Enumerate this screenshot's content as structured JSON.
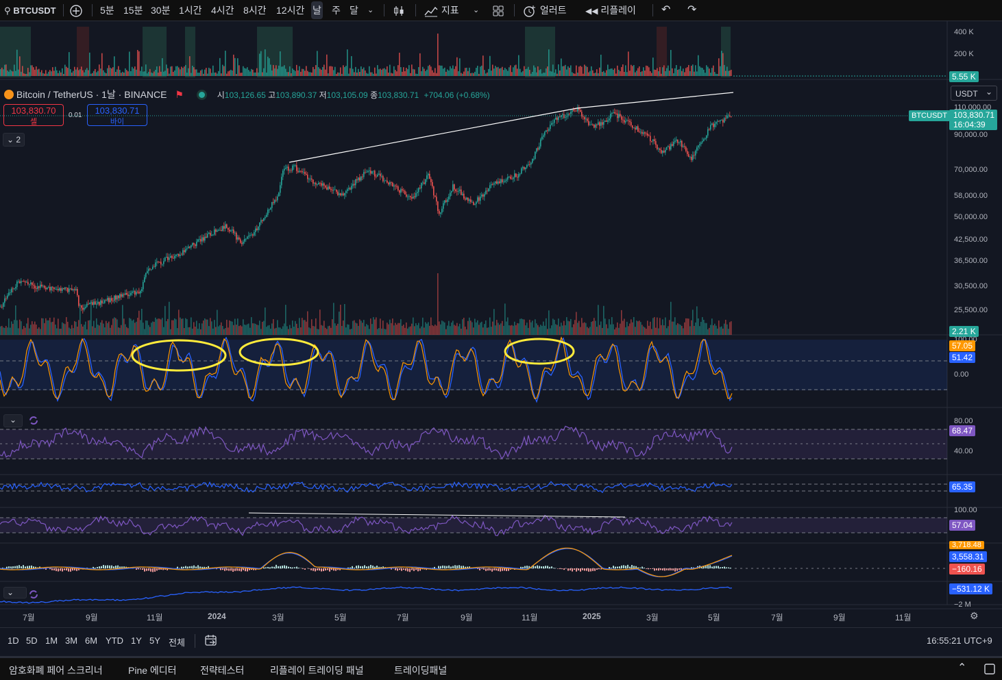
{
  "toolbar": {
    "symbol": "BTCUSDT",
    "intervals": [
      "5분",
      "15분",
      "30분",
      "1시간",
      "4시간",
      "8시간",
      "12시간",
      "날",
      "주",
      "달"
    ],
    "active_interval": "날",
    "indicators_label": "지표",
    "alert_label": "얼러트",
    "replay_label": "리플레이"
  },
  "legend": {
    "title": "Bitcoin / TetherUS · 1날 · BINANCE",
    "open_label": "시",
    "open": "103,126.65",
    "high_label": "고",
    "high": "103,890.37",
    "low_label": "저",
    "low": "103,105.09",
    "close_label": "종",
    "close": "103,830.71",
    "change": "+704.06 (+0.68%)",
    "sell_price": "103,830.70",
    "sell_label": "셀",
    "spread": "0.01",
    "buy_price": "103,830.71",
    "buy_label": "바이",
    "collapsed_count": "2"
  },
  "currency": "USDT",
  "price_axis": [
    "110,000.00",
    "90,000.00",
    "70,000.00",
    "58,000.00",
    "50,000.00",
    "42,500.00",
    "36,500.00",
    "30,500.00",
    "25,500.00"
  ],
  "top_volume_axis": [
    "400 K",
    "200 K"
  ],
  "tags": {
    "top_volume": "5.55 K",
    "symbol_tag": "BTCUSDT",
    "last_price": "103,830.71",
    "countdown": "16:04:39",
    "volume": "2.21 K",
    "stoch_k": "57.05",
    "stoch_d": "51.42",
    "stoch_axis_top": "100.00",
    "stoch_zero": "0.00",
    "rsi_axis_80": "80.00",
    "rsi_axis_40": "40.00",
    "rsi": "68.47",
    "ind3": "65.35",
    "ind4_axis": "100.00",
    "ind4": "57.04",
    "macd_top": "3,718.48",
    "macd": "3,558.31",
    "macd_hist": "−160.16",
    "obv": "−531.12 K",
    "obv_axis": "−2 M"
  },
  "time_axis": [
    "7월",
    "9월",
    "11월",
    "2024",
    "3월",
    "5월",
    "7월",
    "9월",
    "11월",
    "2025",
    "3월",
    "5월",
    "7월",
    "9월",
    "11월"
  ],
  "ranges": [
    "1D",
    "5D",
    "1M",
    "3M",
    "6M",
    "YTD",
    "1Y",
    "5Y",
    "전체"
  ],
  "clock": "16:55:21 UTC+9",
  "bottom_tabs": [
    "암호화폐 페어 스크리너",
    "Pine 에디터",
    "전략테스터",
    "리플레이 트레이딩 패널",
    "트레이딩패널"
  ],
  "colors": {
    "up": "#26a69a",
    "down": "#ef5350",
    "blue": "#2962ff",
    "orange": "#ff9800",
    "purple": "#7e57c2",
    "yellow": "#ffeb3b"
  }
}
